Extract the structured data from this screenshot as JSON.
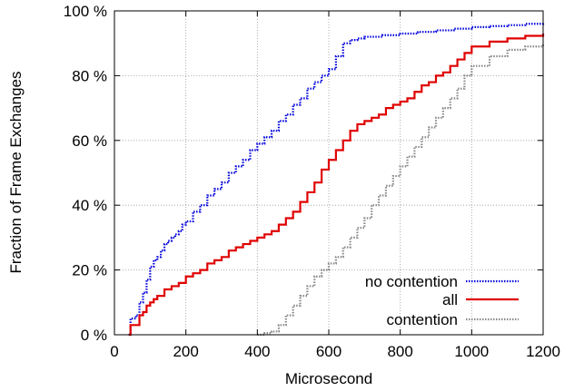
{
  "chart_data": {
    "type": "line",
    "title": "",
    "xlabel": "Microsecond",
    "ylabel": "Fraction of Frame Exchanges",
    "xlim": [
      0,
      1200
    ],
    "ylim": [
      0,
      100
    ],
    "x_ticks": [
      0,
      200,
      400,
      600,
      800,
      1000,
      1200
    ],
    "x_tick_labels": [
      "0",
      "200",
      "400",
      "600",
      "800",
      "1000",
      "1200"
    ],
    "y_ticks": [
      0,
      20,
      40,
      60,
      80,
      100
    ],
    "y_tick_labels": [
      "0 %",
      "20 %",
      "40 %",
      "60 %",
      "80 %",
      "100 %"
    ],
    "grid": true,
    "legend_position": "bottom-right",
    "series": [
      {
        "name": "no contention",
        "color": "#0000dd",
        "style": "dotted",
        "x": [
          40,
          45,
          50,
          60,
          70,
          80,
          90,
          100,
          110,
          120,
          130,
          140,
          150,
          160,
          170,
          180,
          190,
          200,
          220,
          240,
          260,
          280,
          300,
          320,
          340,
          360,
          380,
          400,
          420,
          440,
          460,
          480,
          500,
          520,
          540,
          560,
          580,
          600,
          620,
          640,
          660,
          680,
          700,
          750,
          800,
          850,
          900,
          950,
          1000,
          1050,
          1100,
          1150,
          1200
        ],
        "y": [
          0,
          5,
          5,
          6,
          10,
          13,
          17,
          21,
          23,
          24,
          26,
          28,
          29,
          30,
          31,
          32,
          34,
          35,
          38,
          40,
          43,
          45,
          47,
          50,
          52,
          54,
          57,
          59,
          61,
          63,
          66,
          68,
          71,
          73,
          76,
          78,
          80,
          82,
          86,
          90,
          91,
          91.5,
          92,
          92.5,
          93,
          93.5,
          94,
          94.5,
          95,
          95.3,
          95.6,
          96,
          96.3
        ]
      },
      {
        "name": "all",
        "color": "#e00000",
        "style": "solid",
        "x": [
          40,
          45,
          60,
          70,
          80,
          90,
          100,
          110,
          120,
          140,
          160,
          180,
          200,
          220,
          240,
          260,
          280,
          300,
          320,
          340,
          360,
          380,
          400,
          420,
          440,
          460,
          480,
          500,
          520,
          540,
          560,
          580,
          600,
          620,
          640,
          660,
          680,
          700,
          720,
          740,
          760,
          780,
          800,
          820,
          840,
          860,
          880,
          900,
          920,
          940,
          960,
          980,
          1000,
          1050,
          1100,
          1150,
          1200
        ],
        "y": [
          0,
          3,
          3,
          6,
          7,
          9,
          10,
          11,
          12,
          14,
          15,
          16,
          18,
          19,
          20,
          22,
          23,
          24,
          26,
          27,
          28,
          29,
          30,
          31,
          32,
          34,
          36,
          38,
          41,
          44,
          47,
          51,
          54,
          57,
          60,
          63,
          65,
          66,
          67,
          68,
          70,
          71,
          72,
          73,
          75,
          77,
          78,
          80,
          81,
          83,
          85,
          87,
          89,
          90.5,
          91.5,
          92.3,
          93
        ]
      },
      {
        "name": "contention",
        "color": "#888888",
        "style": "dotted",
        "x": [
          400,
          420,
          440,
          460,
          480,
          500,
          520,
          540,
          560,
          580,
          600,
          620,
          640,
          660,
          680,
          700,
          720,
          740,
          760,
          780,
          800,
          820,
          840,
          860,
          880,
          900,
          920,
          940,
          960,
          980,
          1000,
          1050,
          1100,
          1150,
          1200
        ],
        "y": [
          0,
          0.5,
          1,
          3,
          6,
          9,
          12,
          15,
          18,
          20,
          22,
          24,
          27,
          30,
          33,
          36,
          40,
          43,
          46,
          49,
          52,
          55,
          58,
          61,
          64,
          67,
          70,
          73,
          76,
          80,
          83,
          86,
          88,
          89,
          90
        ]
      }
    ]
  }
}
